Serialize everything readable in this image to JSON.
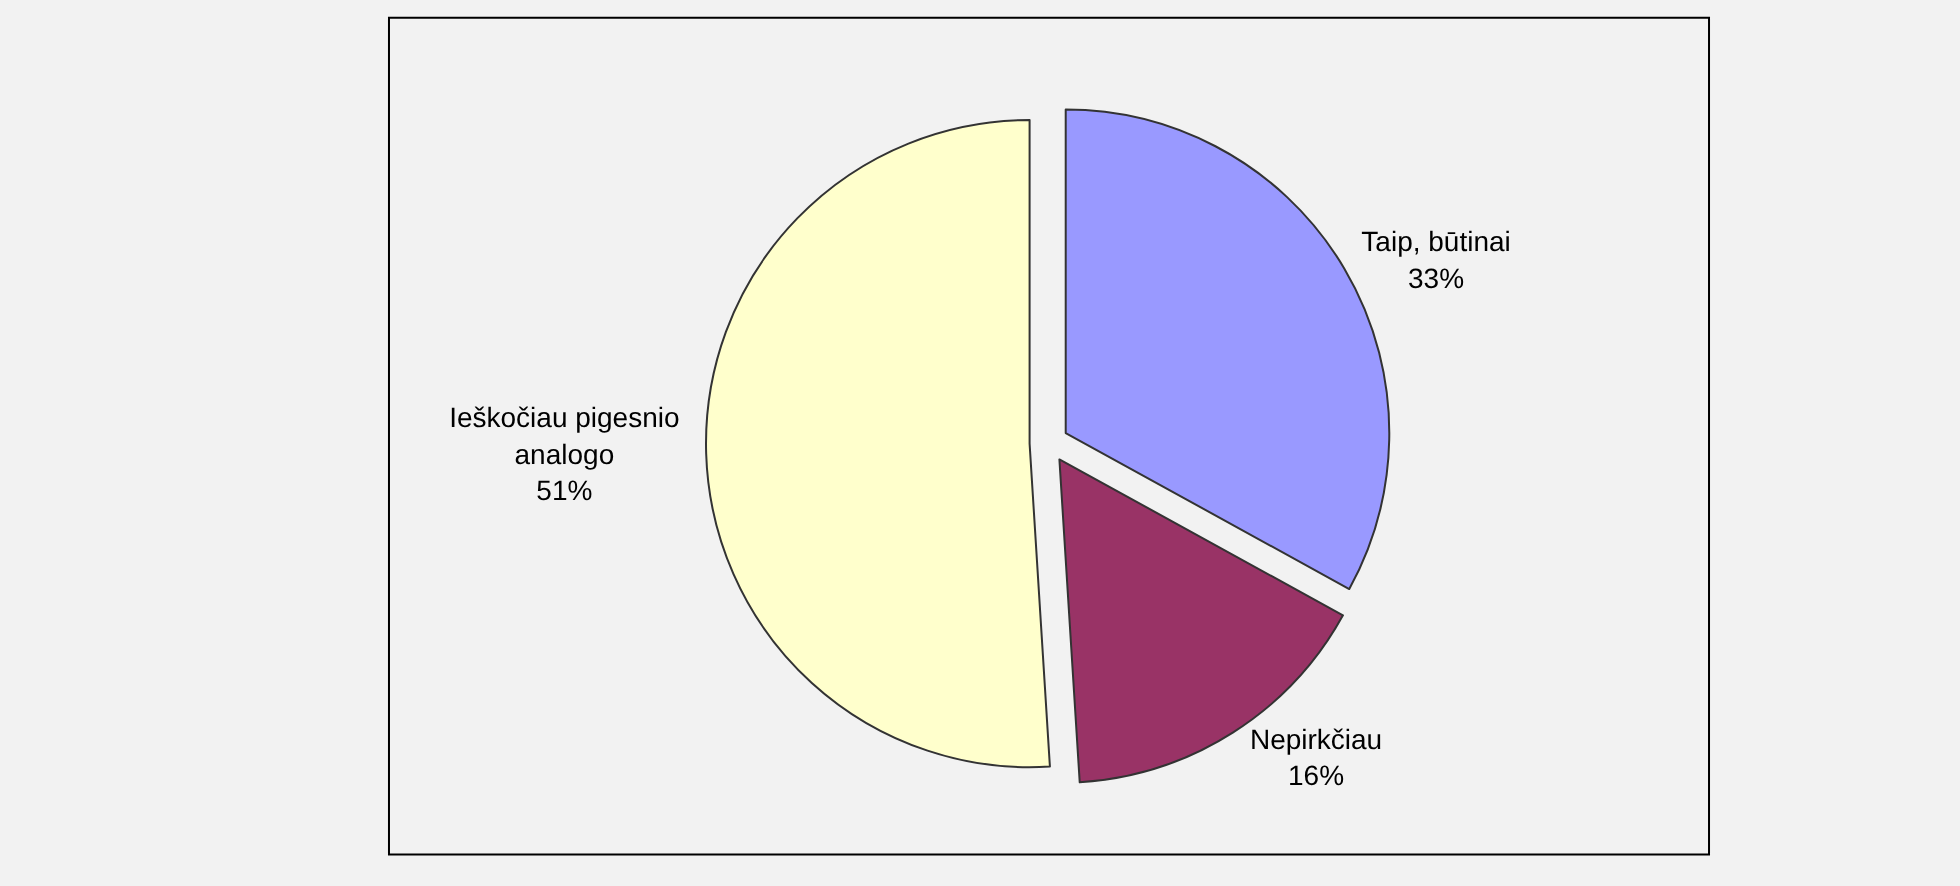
{
  "chart_data": {
    "type": "pie",
    "categories": [
      "Taip, būtinai",
      "Nepirkčiau",
      "Ieškočiau pigesnio analogo"
    ],
    "values": [
      33,
      16,
      51
    ],
    "value_labels": [
      "33%",
      "16%",
      "51%"
    ],
    "colors": [
      "#9999ff",
      "#993366",
      "#ffffcc"
    ],
    "legend": false
  }
}
